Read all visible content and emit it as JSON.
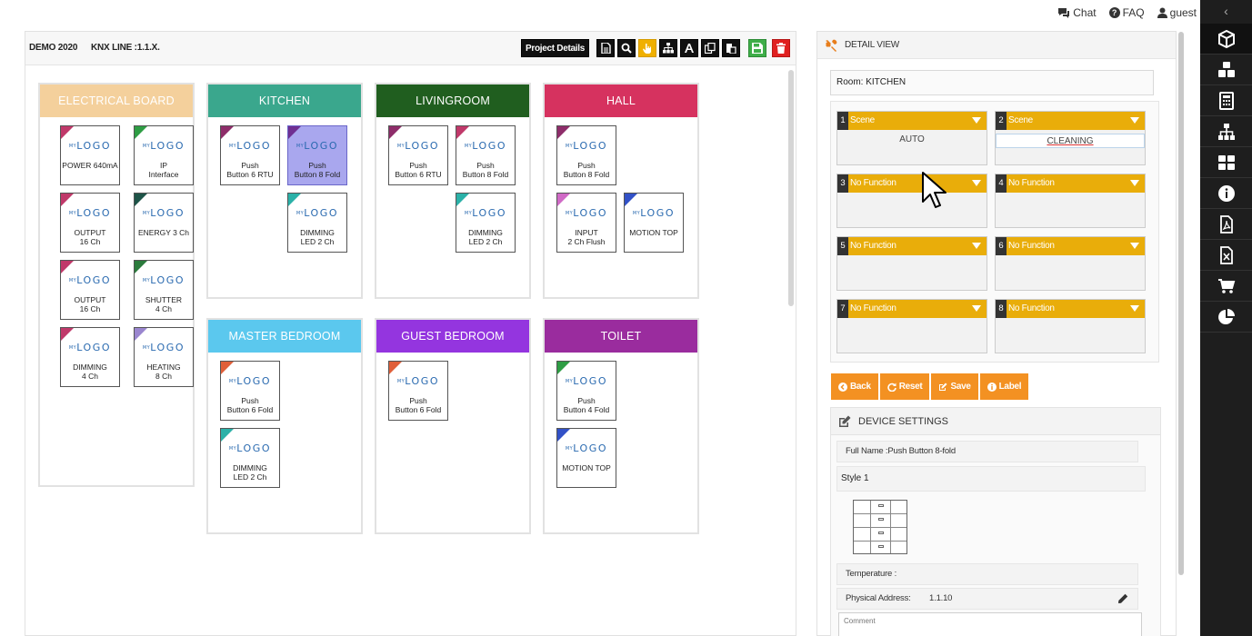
{
  "topbar": {
    "chat": "Chat",
    "faq": "FAQ",
    "user": "guest"
  },
  "project": {
    "name": "DEMO 2020",
    "line": "KNX LINE :1.1.X.",
    "details_button": "Project Details"
  },
  "rooms": [
    {
      "name": "ELECTRICAL BOARD",
      "color": "#f4d09c",
      "devices": [
        {
          "line1": "POWER 640mA",
          "line2": "",
          "tri": "#c0396a"
        },
        {
          "line1": "IP",
          "line2": "Interface",
          "tri": "#2e9d44"
        },
        {
          "line1": "OUTPUT",
          "line2": "16 Ch",
          "tri": "#c0396a"
        },
        {
          "line1": "ENERGY 3 Ch",
          "line2": "",
          "tri": "#1e5448"
        },
        {
          "line1": "OUTPUT",
          "line2": "16 Ch",
          "tri": "#c0396a"
        },
        {
          "line1": "SHUTTER",
          "line2": "4 Ch",
          "tri": "#2b7b3c"
        },
        {
          "line1": "DIMMING",
          "line2": "4 Ch",
          "tri": "#c0396a"
        },
        {
          "line1": "HEATING",
          "line2": "8 Ch",
          "tri": "#9a86cf"
        }
      ]
    },
    {
      "name": "KITCHEN",
      "color": "#3aa78d",
      "devices": [
        {
          "line1": "Push",
          "line2": "Button 6 RTU",
          "tri": "#8e2d6a"
        },
        {
          "line1": "Push",
          "line2": "Button 8 Fold",
          "tri": "#6f2f92",
          "selected": true
        },
        {
          "line1": "DIMMING",
          "line2": "LED 2 Ch",
          "tri": "#2bb1a8"
        }
      ]
    },
    {
      "name": "LIVINGROOM",
      "color": "#205e1f",
      "devices": [
        {
          "line1": "Push",
          "line2": "Button 6 RTU",
          "tri": "#8e2d6a"
        },
        {
          "line1": "Push",
          "line2": "Button 8 Fold",
          "tri": "#c0396a"
        },
        {
          "line1": "DIMMING",
          "line2": "LED 2 Ch",
          "tri": "#2bb1a8"
        }
      ]
    },
    {
      "name": "HALL",
      "color": "#d6325f",
      "devices": [
        {
          "line1": "Push",
          "line2": "Button 8 Fold",
          "tri": "#8e2d6a"
        },
        {
          "line1": "INPUT",
          "line2": "2 Ch Flush",
          "tri": "#d06ac6"
        },
        {
          "line1": "MOTION TOP",
          "line2": "",
          "tri": "#3251c7"
        }
      ]
    },
    {
      "name": "MASTER BEDROOM",
      "color": "#5bc8ee",
      "devices": [
        {
          "line1": "Push",
          "line2": "Button 6 Fold",
          "tri": "#e0603a"
        },
        {
          "line1": "DIMMING",
          "line2": "LED 2 Ch",
          "tri": "#2bb1a8"
        }
      ]
    },
    {
      "name": "GUEST BEDROOM",
      "color": "#9435df",
      "devices": [
        {
          "line1": "Push",
          "line2": "Button 6 Fold",
          "tri": "#e0603a"
        }
      ]
    },
    {
      "name": "TOILET",
      "color": "#9a2c9e",
      "devices": [
        {
          "line1": "Push",
          "line2": "Button 4 Fold",
          "tri": "#2e9d44"
        },
        {
          "line1": "MOTION TOP",
          "line2": "",
          "tri": "#3251c7"
        }
      ]
    }
  ],
  "detail": {
    "title": "DETAIL VIEW",
    "room_label": "Room:  KITCHEN",
    "slots": [
      {
        "num": "1",
        "func": "Scene",
        "value": "AUTO"
      },
      {
        "num": "2",
        "func": "Scene",
        "value": "CLEANING"
      },
      {
        "num": "3",
        "func": "No Function",
        "value": ""
      },
      {
        "num": "4",
        "func": "No Function",
        "value": ""
      },
      {
        "num": "5",
        "func": "No Function",
        "value": ""
      },
      {
        "num": "6",
        "func": "No Function",
        "value": ""
      },
      {
        "num": "7",
        "func": "No Function",
        "value": ""
      },
      {
        "num": "8",
        "func": "No Function",
        "value": ""
      }
    ],
    "buttons": {
      "back": "Back",
      "reset": "Reset",
      "save": "Save",
      "label": "Label"
    },
    "device_settings": {
      "title": "DEVICE SETTINGS",
      "full_name": "Full Name :Push Button 8-fold",
      "style": "Style 1",
      "temperature": "Temperature :",
      "physical_address_label": "Physical Address:",
      "physical_address": "1.1.10",
      "comment_placeholder": "Comment"
    }
  },
  "colors": {
    "accent_orange": "#f39122",
    "slot_yellow": "#e9ad0a",
    "sidebar_dark": "#1e1e1e"
  }
}
